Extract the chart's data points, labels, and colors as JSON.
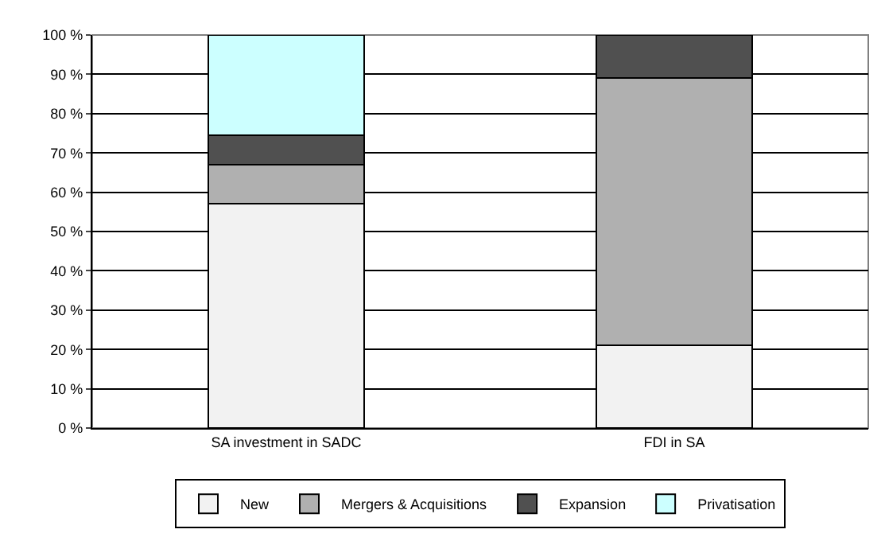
{
  "chart_data": {
    "type": "bar",
    "stacked": true,
    "categories": [
      "SA investment in SADC",
      "FDI in SA"
    ],
    "series": [
      {
        "name": "New",
        "color": "#f2f2f2",
        "values": [
          57,
          21
        ]
      },
      {
        "name": "Mergers & Acquisitions",
        "color": "#b0b0b0",
        "values": [
          10,
          68
        ]
      },
      {
        "name": "Expansion",
        "color": "#505050",
        "values": [
          7.5,
          11
        ]
      },
      {
        "name": "Privatisation",
        "color": "#ccffff",
        "values": [
          25.5,
          null
        ]
      }
    ],
    "ylim": [
      0,
      100
    ],
    "yticks": [
      {
        "value": 0,
        "label": "0 %"
      },
      {
        "value": 10,
        "label": "10 %"
      },
      {
        "value": 20,
        "label": "20 %"
      },
      {
        "value": 30,
        "label": "30 %"
      },
      {
        "value": 40,
        "label": "40 %"
      },
      {
        "value": 50,
        "label": "50 %"
      },
      {
        "value": 60,
        "label": "60 %"
      },
      {
        "value": 70,
        "label": "70 %"
      },
      {
        "value": 80,
        "label": "80 %"
      },
      {
        "value": 90,
        "label": "90 %"
      },
      {
        "value": 100,
        "label": "100 %"
      }
    ],
    "grid": "y",
    "legend": "bottom"
  }
}
